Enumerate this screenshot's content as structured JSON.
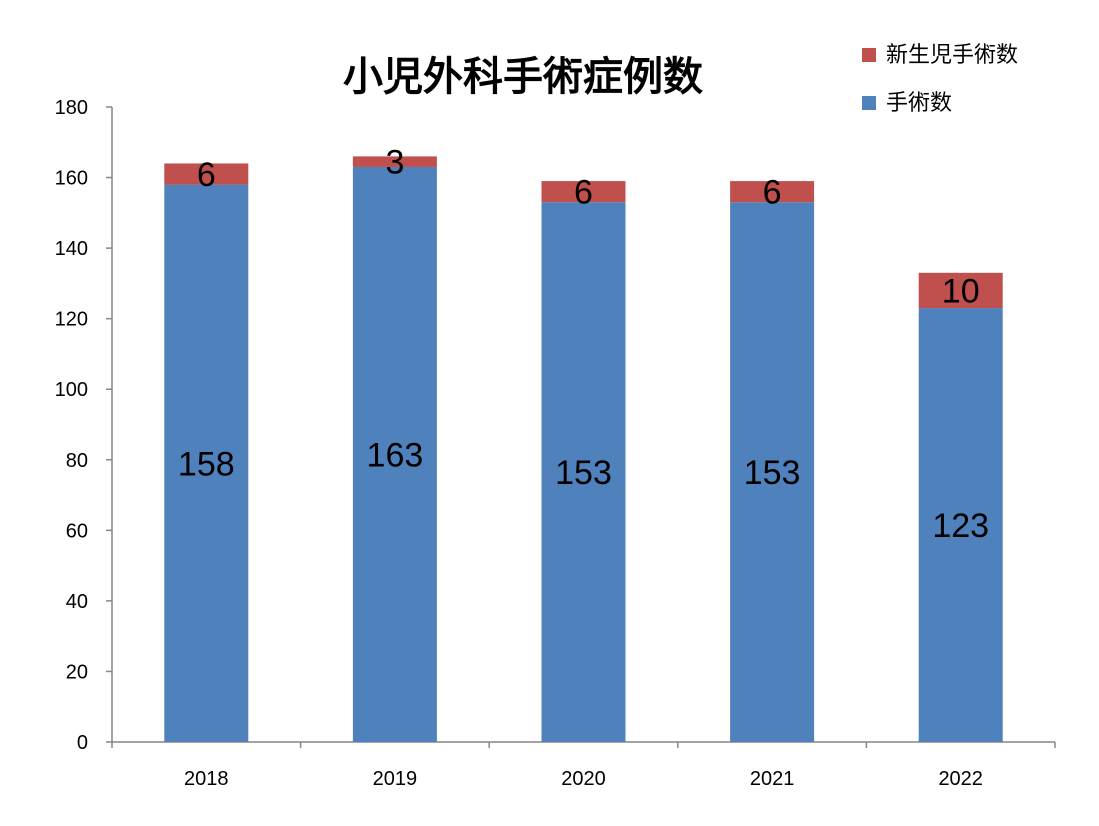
{
  "chart_data": {
    "type": "bar",
    "stacked": true,
    "title": "小児外科手術症例数",
    "xlabel": "",
    "ylabel": "",
    "categories": [
      "2018",
      "2019",
      "2020",
      "2021",
      "2022"
    ],
    "series": [
      {
        "name": "手術数",
        "values": [
          158,
          163,
          153,
          153,
          123
        ],
        "color": "#4F81BD"
      },
      {
        "name": "新生児手術数",
        "values": [
          6,
          3,
          6,
          6,
          10
        ],
        "color": "#C0504D"
      }
    ],
    "ylim": [
      0,
      180
    ],
    "yticks": [
      0,
      20,
      40,
      60,
      80,
      100,
      120,
      140,
      160,
      180
    ],
    "grid": false,
    "legend_position": "top-right",
    "data_labels": true
  }
}
